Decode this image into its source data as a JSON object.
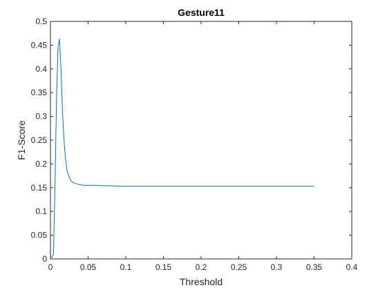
{
  "chart_data": {
    "type": "line",
    "title": "Gesture11",
    "xlabel": "Threshold",
    "ylabel": "F1-Score",
    "xlim": [
      0,
      0.4
    ],
    "ylim": [
      0,
      0.5
    ],
    "xticks": [
      0,
      0.05,
      0.1,
      0.15,
      0.2,
      0.25,
      0.3,
      0.35,
      0.4
    ],
    "xtick_labels": [
      "0",
      "0.05",
      "0.1",
      "0.15",
      "0.2",
      "0.25",
      "0.3",
      "0.35",
      "0.4"
    ],
    "yticks": [
      0,
      0.05,
      0.1,
      0.15,
      0.2,
      0.25,
      0.3,
      0.35,
      0.4,
      0.45,
      0.5
    ],
    "ytick_labels": [
      "0",
      "0.05",
      "0.1",
      "0.15",
      "0.2",
      "0.25",
      "0.3",
      "0.35",
      "0.4",
      "0.45",
      "0.5"
    ],
    "grid": false,
    "line_color": "#0072BD",
    "series": [
      {
        "x": [
          0,
          0.002,
          0.004,
          0.006,
          0.008,
          0.01,
          0.012,
          0.014,
          0.016,
          0.018,
          0.02,
          0.022,
          0.025,
          0.028,
          0.031,
          0.035,
          0.04,
          0.045,
          0.05,
          0.06,
          0.07,
          0.08,
          0.09,
          0.1,
          0.12,
          0.15,
          0.2,
          0.25,
          0.3,
          0.35
        ],
        "y": [
          0.002,
          0.004,
          0.01,
          0.15,
          0.33,
          0.445,
          0.463,
          0.4,
          0.31,
          0.25,
          0.21,
          0.186,
          0.172,
          0.163,
          0.16,
          0.158,
          0.156,
          0.155,
          0.155,
          0.155,
          0.154,
          0.154,
          0.153,
          0.153,
          0.153,
          0.153,
          0.153,
          0.153,
          0.153,
          0.153
        ]
      }
    ]
  }
}
